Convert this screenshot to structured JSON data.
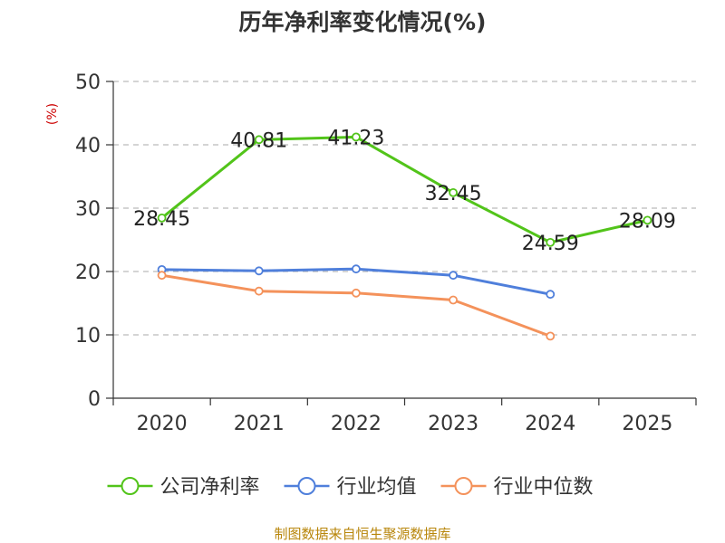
{
  "chart_data": {
    "type": "line",
    "title": "历年净利率变化情况(%)",
    "ylabel": "(%)",
    "categories": [
      "2020",
      "2021",
      "2022",
      "2023",
      "2024",
      "2025"
    ],
    "ylim": [
      0,
      50
    ],
    "yticks": [
      0,
      10,
      20,
      30,
      40,
      50
    ],
    "grid": true,
    "legend_position": "bottom",
    "series": [
      {
        "name": "公司净利率",
        "color": "#52c41a",
        "values": [
          28.45,
          40.81,
          41.23,
          32.45,
          24.59,
          28.09
        ],
        "show_labels": true
      },
      {
        "name": "行业均值",
        "color": "#4f7fdb",
        "values": [
          20.3,
          20.1,
          20.4,
          19.4,
          16.4,
          null
        ],
        "show_labels": false
      },
      {
        "name": "行业中位数",
        "color": "#f4925b",
        "values": [
          19.4,
          16.9,
          16.6,
          15.5,
          9.8,
          null
        ],
        "show_labels": false
      }
    ]
  },
  "footer": {
    "source": "制图数据来自恒生聚源数据库"
  }
}
